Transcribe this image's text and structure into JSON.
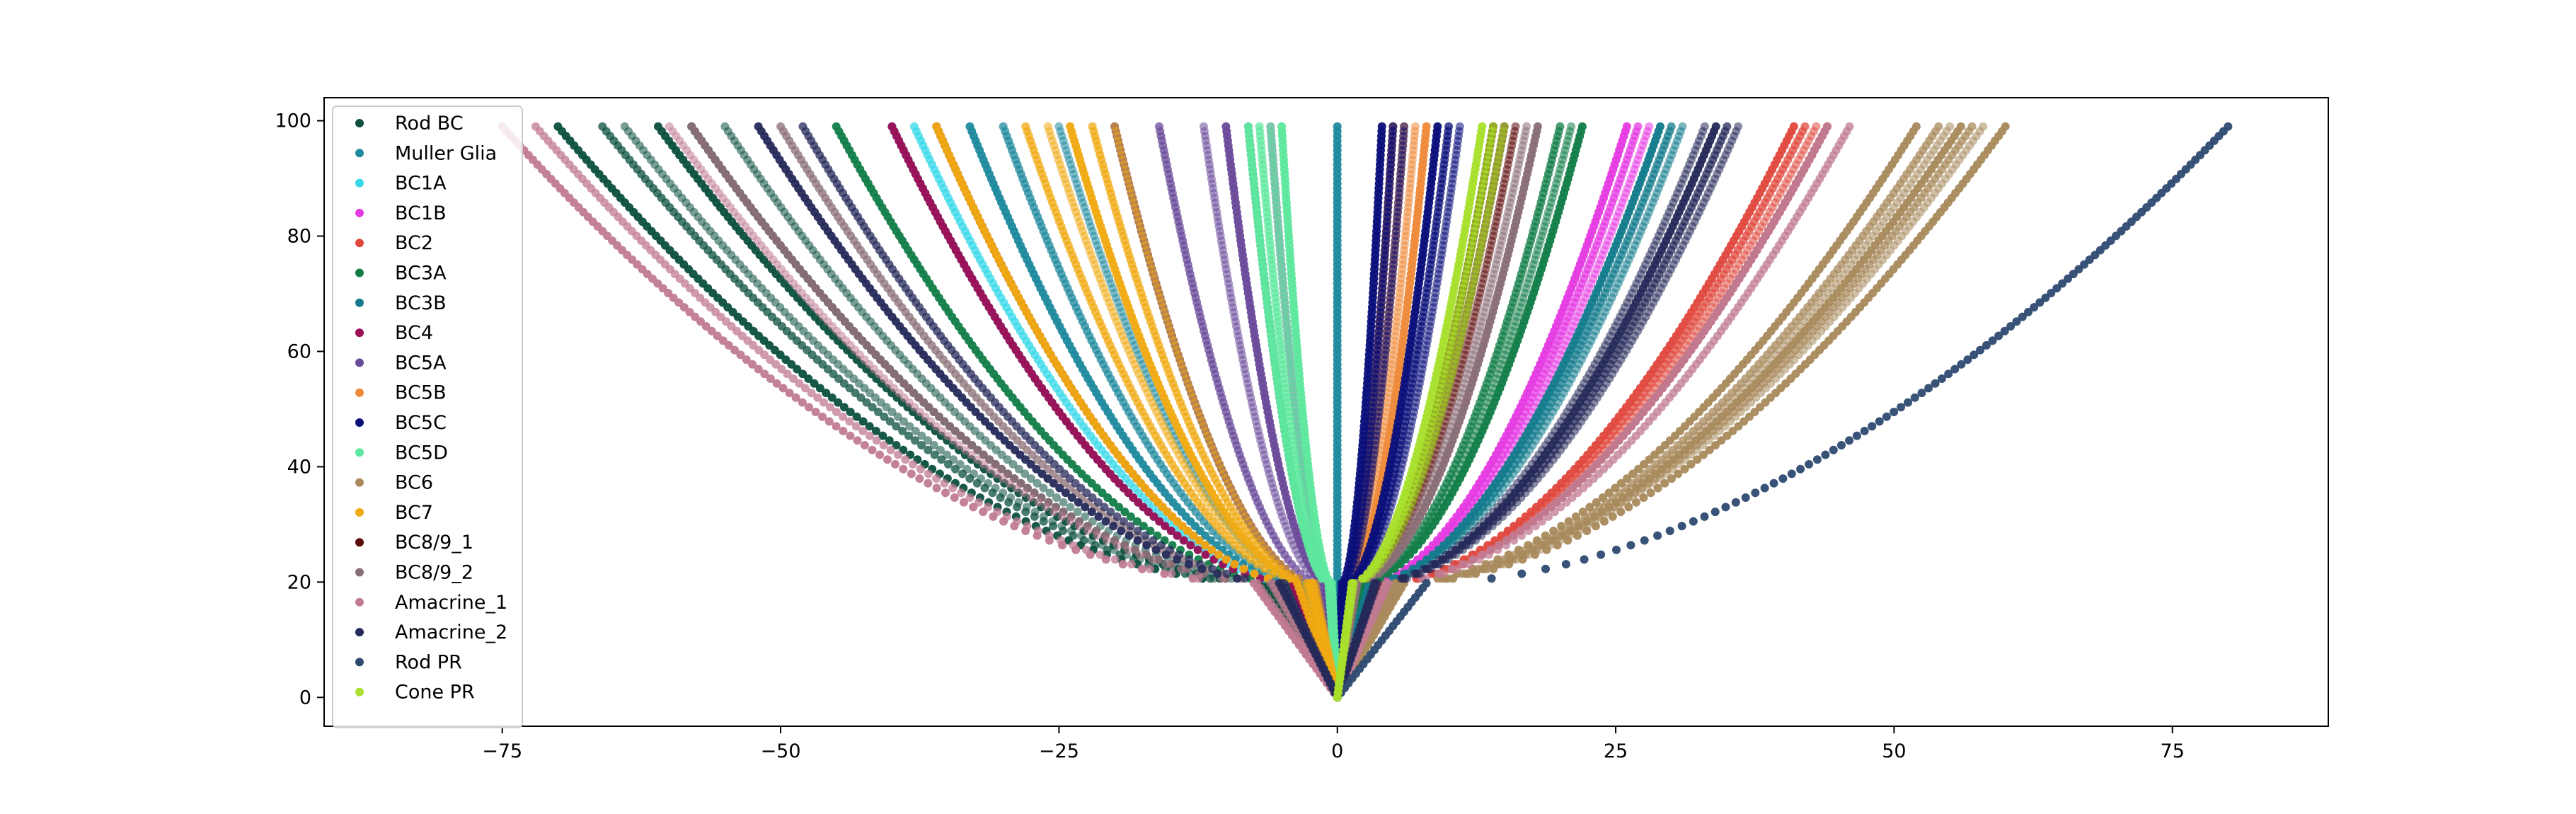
{
  "chart_data": {
    "type": "scatter",
    "title": "",
    "xlabel": "",
    "ylabel": "",
    "xlim": [
      -91,
      89
    ],
    "ylim": [
      -5,
      104
    ],
    "xticks": [
      -75,
      -50,
      -25,
      0,
      25,
      50,
      75
    ],
    "xtick_labels": [
      "−75",
      "−50",
      "−25",
      "0",
      "25",
      "50",
      "75"
    ],
    "yticks": [
      0,
      20,
      40,
      60,
      80,
      100
    ],
    "ytick_labels": [
      "0",
      "20",
      "40",
      "60",
      "80",
      "100"
    ],
    "grid": false,
    "legend_placement": "upper-left",
    "series": [
      {
        "name": "Rod BC",
        "color": "#0b4f3f",
        "tips": [
          -70,
          -66,
          -64,
          -61,
          -58,
          -55
        ],
        "branch_y": 45
      },
      {
        "name": "Muller Glia",
        "color": "#1f8a9e",
        "tips": [
          -33,
          -30,
          -25,
          0
        ],
        "branch_y": 40
      },
      {
        "name": "BC1A",
        "color": "#36d8e8",
        "tips": [
          -40,
          -38,
          -36
        ],
        "branch_y": 55
      },
      {
        "name": "BC1B",
        "color": "#e53be3",
        "tips": [
          26,
          27,
          28
        ],
        "branch_y": 55
      },
      {
        "name": "BC2",
        "color": "#e0483e",
        "tips": [
          41,
          42,
          43,
          44
        ],
        "branch_y": 30
      },
      {
        "name": "BC3A",
        "color": "#127d48",
        "tips": [
          -45,
          20,
          21,
          22
        ],
        "branch_y": 45
      },
      {
        "name": "BC3B",
        "color": "#137b8c",
        "tips": [
          29,
          30,
          31
        ],
        "branch_y": 40
      },
      {
        "name": "BC4",
        "color": "#9c0e55",
        "tips": [
          -40,
          -36
        ],
        "branch_y": 40
      },
      {
        "name": "BC5A",
        "color": "#6a4a9a",
        "tips": [
          -20,
          -16,
          -12,
          -10,
          -8,
          -6
        ],
        "branch_y": 30
      },
      {
        "name": "BC5B",
        "color": "#ee8a3a",
        "tips": [
          5,
          6,
          7,
          8
        ],
        "branch_y": 35
      },
      {
        "name": "BC5C",
        "color": "#0a0f7a",
        "tips": [
          4,
          5,
          6,
          9,
          10,
          11
        ],
        "branch_y": 30
      },
      {
        "name": "BC5D",
        "color": "#5ee89e",
        "tips": [
          -8,
          -7,
          -6,
          -5
        ],
        "branch_y": 35
      },
      {
        "name": "BC6",
        "color": "#a88a5c",
        "tips": [
          52,
          54,
          55,
          56,
          57,
          58,
          60
        ],
        "branch_y": 45
      },
      {
        "name": "BC7",
        "color": "#f0aa12",
        "tips": [
          -36,
          -28,
          -26,
          -24,
          -22,
          -20
        ],
        "branch_y": 35
      },
      {
        "name": "BC8/9_1",
        "color": "#5c0b0b",
        "tips": [
          14,
          15,
          16
        ],
        "branch_y": 45
      },
      {
        "name": "BC8/9_2",
        "color": "#8a6e76",
        "tips": [
          -58,
          -50,
          17,
          18
        ],
        "branch_y": 40
      },
      {
        "name": "Amacrine_1",
        "color": "#c07b92",
        "tips": [
          -75,
          -72,
          -60,
          44,
          46
        ],
        "branch_y": 30
      },
      {
        "name": "Amacrine_2",
        "color": "#262a5a",
        "tips": [
          -52,
          -48,
          33,
          34,
          35,
          36
        ],
        "branch_y": 35
      },
      {
        "name": "Rod PR",
        "color": "#2d4a70",
        "tips": [
          80
        ],
        "branch_y": 0
      },
      {
        "name": "Cone PR",
        "color": "#a8e02c",
        "tips": [
          13,
          14,
          15
        ],
        "branch_y": 35
      }
    ]
  }
}
